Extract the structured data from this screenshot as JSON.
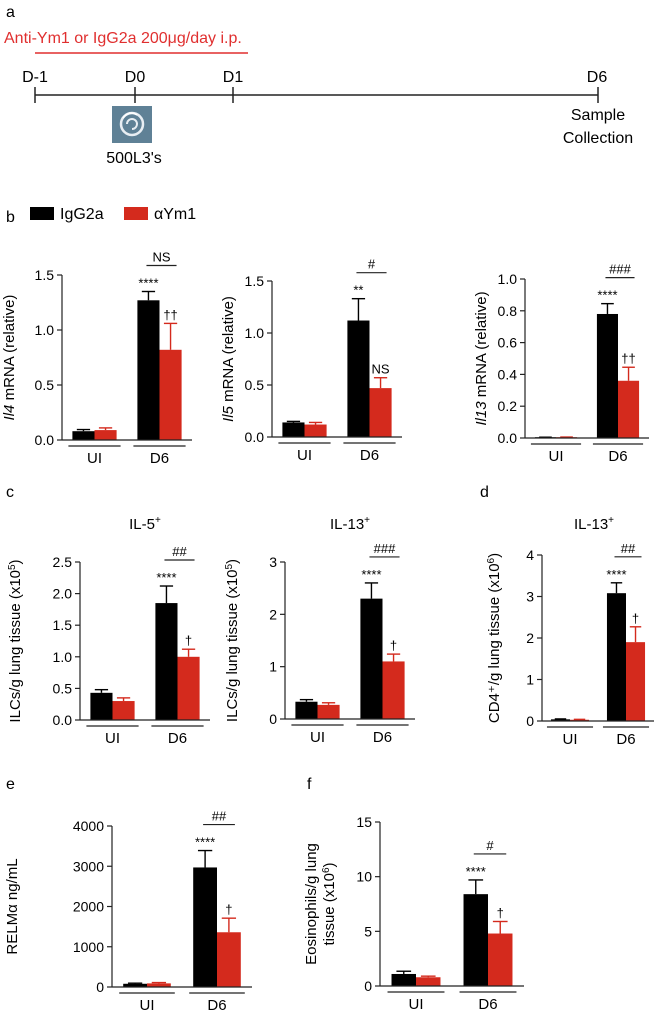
{
  "colors": {
    "igg": "#000000",
    "ym1": "#d42a1d",
    "treatment": "#e02f2f",
    "axis": "#222222"
  },
  "panel_labels": {
    "a": "a",
    "b": "b",
    "c": "c",
    "d": "d",
    "e": "e",
    "f": "f"
  },
  "timeline": {
    "treatment_label": "Anti-Ym1 or IgG2a 200μg/day i.p.",
    "days": [
      "D-1",
      "D0",
      "D1",
      "D6"
    ],
    "infection_label": "500L3's",
    "collection_line1": "Sample",
    "collection_line2": "Collection"
  },
  "legend": {
    "igg": "IgG2a",
    "ym1": "αYm1"
  },
  "chart_data": [
    {
      "id": "il4",
      "type": "bar",
      "panel": "b",
      "title": "",
      "ylabel_gene": "Il4",
      "ylabel_rest": " mRNA (relative)",
      "categories": [
        "UI",
        "D6"
      ],
      "series": [
        {
          "name": "IgG2a",
          "values": [
            0.08,
            1.27
          ],
          "errors": [
            0.015,
            0.08
          ]
        },
        {
          "name": "αYm1",
          "values": [
            0.09,
            0.82
          ],
          "errors": [
            0.02,
            0.24
          ]
        }
      ],
      "ylim": [
        0,
        1.5
      ],
      "yticks": [
        "0.0",
        "0.5",
        "1.0",
        "1.5"
      ],
      "yticks_values": [
        0,
        0.5,
        1.0,
        1.5
      ],
      "marks": {
        "igg_d6": "****",
        "ym1_d6": "††",
        "compare": "NS"
      }
    },
    {
      "id": "il5",
      "type": "bar",
      "panel": "b",
      "title": "",
      "ylabel_gene": "Il5",
      "ylabel_rest": " mRNA (relative)",
      "categories": [
        "UI",
        "D6"
      ],
      "series": [
        {
          "name": "IgG2a",
          "values": [
            0.14,
            1.12
          ],
          "errors": [
            0.01,
            0.21
          ]
        },
        {
          "name": "αYm1",
          "values": [
            0.12,
            0.47
          ],
          "errors": [
            0.02,
            0.1
          ]
        }
      ],
      "ylim": [
        0,
        1.5
      ],
      "yticks": [
        "0.0",
        "0.5",
        "1.0",
        "1.5"
      ],
      "yticks_values": [
        0,
        0.5,
        1.0,
        1.5
      ],
      "marks": {
        "igg_d6": "**",
        "ym1_d6": "NS",
        "compare": "#"
      }
    },
    {
      "id": "il13",
      "type": "bar",
      "panel": "b",
      "title": "",
      "ylabel_gene": "Il13",
      "ylabel_rest": " mRNA (relative)",
      "categories": [
        "UI",
        "D6"
      ],
      "series": [
        {
          "name": "IgG2a",
          "values": [
            0.003,
            0.78
          ],
          "errors": [
            0.002,
            0.065
          ]
        },
        {
          "name": "αYm1",
          "values": [
            0.004,
            0.36
          ],
          "errors": [
            0.002,
            0.085
          ]
        }
      ],
      "ylim": [
        0,
        1.0
      ],
      "yticks": [
        "0.0",
        "0.2",
        "0.4",
        "0.6",
        "0.8",
        "1.0"
      ],
      "yticks_values": [
        0,
        0.2,
        0.4,
        0.6,
        0.8,
        1.0
      ],
      "marks": {
        "igg_d6": "****",
        "ym1_d6": "††",
        "compare": "###"
      }
    },
    {
      "id": "il5_ilc",
      "type": "bar",
      "panel": "c",
      "title_main": "IL-5",
      "title_sup": "+",
      "ylabel_main": "ILCs/g lung tissue (x10",
      "ylabel_sup": "5",
      "ylabel_end": ")",
      "categories": [
        "UI",
        "D6"
      ],
      "series": [
        {
          "name": "IgG2a",
          "values": [
            0.43,
            1.85
          ],
          "errors": [
            0.05,
            0.27
          ]
        },
        {
          "name": "αYm1",
          "values": [
            0.3,
            1.0
          ],
          "errors": [
            0.05,
            0.12
          ]
        }
      ],
      "ylim": [
        0,
        2.5
      ],
      "yticks": [
        "0.0",
        "0.5",
        "1.0",
        "1.5",
        "2.0",
        "2.5"
      ],
      "yticks_values": [
        0,
        0.5,
        1.0,
        1.5,
        2.0,
        2.5
      ],
      "marks": {
        "igg_d6": "****",
        "ym1_d6": "†",
        "compare": "##"
      }
    },
    {
      "id": "il13_ilc",
      "type": "bar",
      "panel": "c",
      "title_main": "IL-13",
      "title_sup": "+",
      "ylabel_main": "ILCs/g lung tissue (x10",
      "ylabel_sup": "5",
      "ylabel_end": ")",
      "categories": [
        "UI",
        "D6"
      ],
      "series": [
        {
          "name": "IgG2a",
          "values": [
            0.33,
            2.3
          ],
          "errors": [
            0.04,
            0.3
          ]
        },
        {
          "name": "αYm1",
          "values": [
            0.27,
            1.1
          ],
          "errors": [
            0.04,
            0.14
          ]
        }
      ],
      "ylim": [
        0,
        3
      ],
      "yticks": [
        "0",
        "1",
        "2",
        "3"
      ],
      "yticks_values": [
        0,
        1,
        2,
        3
      ],
      "marks": {
        "igg_d6": "****",
        "ym1_d6": "†",
        "compare": "###"
      }
    },
    {
      "id": "il13_cd4",
      "type": "bar",
      "panel": "d",
      "title_main": "IL-13",
      "title_sup": "+",
      "ylabel_main": "CD4⁺/g lung tissue (x10",
      "ylabel_sup": "6",
      "ylabel_end": ")",
      "categories": [
        "UI",
        "D6"
      ],
      "series": [
        {
          "name": "IgG2a",
          "values": [
            0.04,
            3.08
          ],
          "errors": [
            0.01,
            0.25
          ]
        },
        {
          "name": "αYm1",
          "values": [
            0.03,
            1.9
          ],
          "errors": [
            0.01,
            0.37
          ]
        }
      ],
      "ylim": [
        0,
        4
      ],
      "yticks": [
        "0",
        "1",
        "2",
        "3",
        "4"
      ],
      "yticks_values": [
        0,
        1,
        2,
        3,
        4
      ],
      "marks": {
        "igg_d6": "****",
        "ym1_d6": "†",
        "compare": "##"
      }
    },
    {
      "id": "relm",
      "type": "bar",
      "panel": "e",
      "ylabel_main": "RELMα ng/mL",
      "categories": [
        "UI",
        "D6"
      ],
      "series": [
        {
          "name": "IgG2a",
          "values": [
            80,
            2970
          ],
          "errors": [
            15,
            420
          ]
        },
        {
          "name": "αYm1",
          "values": [
            90,
            1360
          ],
          "errors": [
            20,
            350
          ]
        }
      ],
      "ylim": [
        0,
        4000
      ],
      "yticks": [
        "0",
        "1000",
        "2000",
        "3000",
        "4000"
      ],
      "yticks_values": [
        0,
        1000,
        2000,
        3000,
        4000
      ],
      "marks": {
        "igg_d6": "****",
        "ym1_d6": "†",
        "compare": "##"
      }
    },
    {
      "id": "eos",
      "type": "bar",
      "panel": "f",
      "ylabel_line1": "Eosinophils/g lung",
      "ylabel_main": "tissue (x10",
      "ylabel_sup": "6",
      "ylabel_end": ")",
      "categories": [
        "UI",
        "D6"
      ],
      "series": [
        {
          "name": "IgG2a",
          "values": [
            1.1,
            8.4
          ],
          "errors": [
            0.25,
            1.3
          ]
        },
        {
          "name": "αYm1",
          "values": [
            0.8,
            4.8
          ],
          "errors": [
            0.1,
            1.1
          ]
        }
      ],
      "ylim": [
        0,
        15
      ],
      "yticks": [
        "0",
        "5",
        "10",
        "15"
      ],
      "yticks_values": [
        0,
        5,
        10,
        15
      ],
      "marks": {
        "igg_d6": "****",
        "ym1_d6": "†",
        "compare": "#"
      }
    }
  ]
}
